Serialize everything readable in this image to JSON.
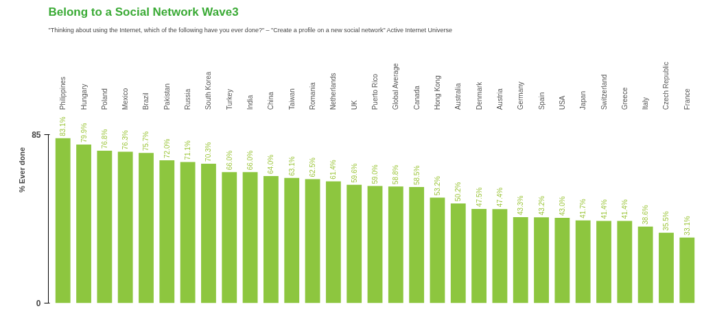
{
  "chart_data": {
    "type": "bar",
    "title": "Belong to a Social Network Wave3",
    "subtitle": "\"Thinking about using the Internet, which of the following have you ever done?\" – \"Create a profile on a new social network\" Active Internet Universe",
    "ylabel": "% Ever done",
    "categories": [
      "Philippines",
      "Hungary",
      "Poland",
      "Mexico",
      "Brazil",
      "Pakistan",
      "Russia",
      "South Korea",
      "Turkey",
      "India",
      "China",
      "Taiwan",
      "Romania",
      "Netherlands",
      "UK",
      "Puerto Rico",
      "Global Average",
      "Canada",
      "Hong Kong",
      "Australia",
      "Denmark",
      "Austria",
      "Germany",
      "Spain",
      "USA",
      "Japan",
      "Switzerland",
      "Greece",
      "Italy",
      "Czech Republic",
      "France"
    ],
    "values": [
      83.1,
      79.9,
      76.8,
      76.3,
      75.7,
      72.0,
      71.1,
      70.3,
      66.0,
      66.0,
      64.0,
      63.1,
      62.5,
      61.4,
      59.6,
      59.0,
      58.8,
      58.5,
      53.2,
      50.2,
      47.5,
      47.4,
      43.3,
      43.2,
      43.0,
      41.7,
      41.4,
      41.4,
      38.6,
      35.5,
      33.1
    ],
    "value_labels": [
      "83.1%",
      "79.9%",
      "76.8%",
      "76.3%",
      "75.7%",
      "72.0%",
      "71.1%",
      "70.3%",
      "66.0%",
      "66.0%",
      "64.0%",
      "63.1%",
      "62.5%",
      "61.4%",
      "59.6%",
      "59.0%",
      "58.8%",
      "58.5%",
      "53.2%",
      "50.2%",
      "47.5%",
      "47.4%",
      "43.3%",
      "43.2%",
      "43.0%",
      "41.7%",
      "41.4%",
      "41.4%",
      "38.6%",
      "35.5%",
      "33.1%"
    ],
    "color": "#8dc63f",
    "ylim": [
      0,
      85
    ],
    "yticks": [
      0,
      85
    ],
    "grid": false
  }
}
